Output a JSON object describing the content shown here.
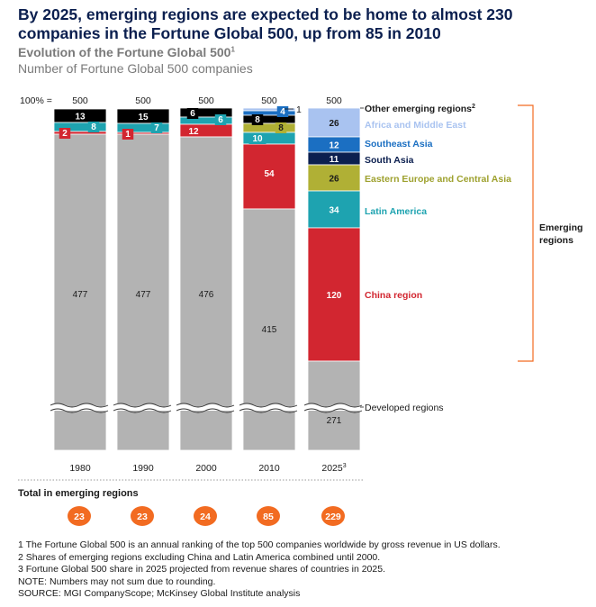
{
  "header": {
    "title": "By 2025, emerging regions are expected to be home to almost 230 companies in the Fortune Global 500, up from 85 in 2010",
    "subtitle": "Evolution of the Fortune Global 500",
    "subtitle_sup": "1",
    "unit": "Number of Fortune Global 500 companies"
  },
  "chart_data": {
    "type": "bar",
    "stacked": true,
    "hundred_percent_label": "100% =",
    "categories": [
      "1980",
      "1990",
      "2000",
      "2010",
      "2025"
    ],
    "category_sups": [
      "",
      "",
      "",
      "",
      "3"
    ],
    "totals": [
      "500",
      "500",
      "500",
      "500",
      "500"
    ],
    "series": [
      {
        "name": "Developed regions",
        "color": "#b3b3b3",
        "values": [
          477,
          477,
          476,
          415,
          271
        ]
      },
      {
        "name": "China region",
        "color": "#d22630",
        "values": [
          2,
          1,
          12,
          54,
          120
        ]
      },
      {
        "name": "Latin America",
        "color": "#1ea3b0",
        "values": [
          8,
          7,
          6,
          10,
          34
        ]
      },
      {
        "name": "Eastern Europe and Central Asia",
        "color": "#b0b035",
        "values": [
          null,
          null,
          null,
          8,
          26
        ]
      },
      {
        "name": "South Asia",
        "color": "#0b1f4f",
        "values": [
          null,
          null,
          null,
          null,
          11
        ]
      },
      {
        "name": "Southeast Asia",
        "color": "#1b6fc2",
        "values": [
          null,
          null,
          null,
          4,
          12
        ]
      },
      {
        "name": "Africa and Middle East",
        "color": "#a9c3f0",
        "values": [
          null,
          null,
          null,
          1,
          26
        ]
      },
      {
        "name": "Other emerging regions",
        "name_sup": "2",
        "color": "#000000",
        "values": [
          13,
          15,
          6,
          8,
          null
        ]
      }
    ],
    "bracket_label": [
      "Emerging",
      "regions"
    ],
    "emerging_totals_title": "Total in emerging regions",
    "emerging_totals": [
      "23",
      "23",
      "24",
      "85",
      "229"
    ]
  },
  "footnotes": [
    "1  The Fortune Global 500 is an annual ranking of the top 500 companies worldwide by gross revenue in US dollars.",
    "2  Shares of emerging regions excluding China and Latin America combined until 2000.",
    "3  Fortune Global 500 share in 2025 projected from revenue shares of countries in 2025.",
    "NOTE: Numbers may not sum due to rounding.",
    "SOURCE: MGI CompanyScope; McKinsey Global Institute analysis"
  ],
  "colors": {
    "title": "#0b1f4f",
    "total_circle": "#f26b21",
    "bracket": "#f26b21",
    "subtitle": "#7a7a7a"
  }
}
